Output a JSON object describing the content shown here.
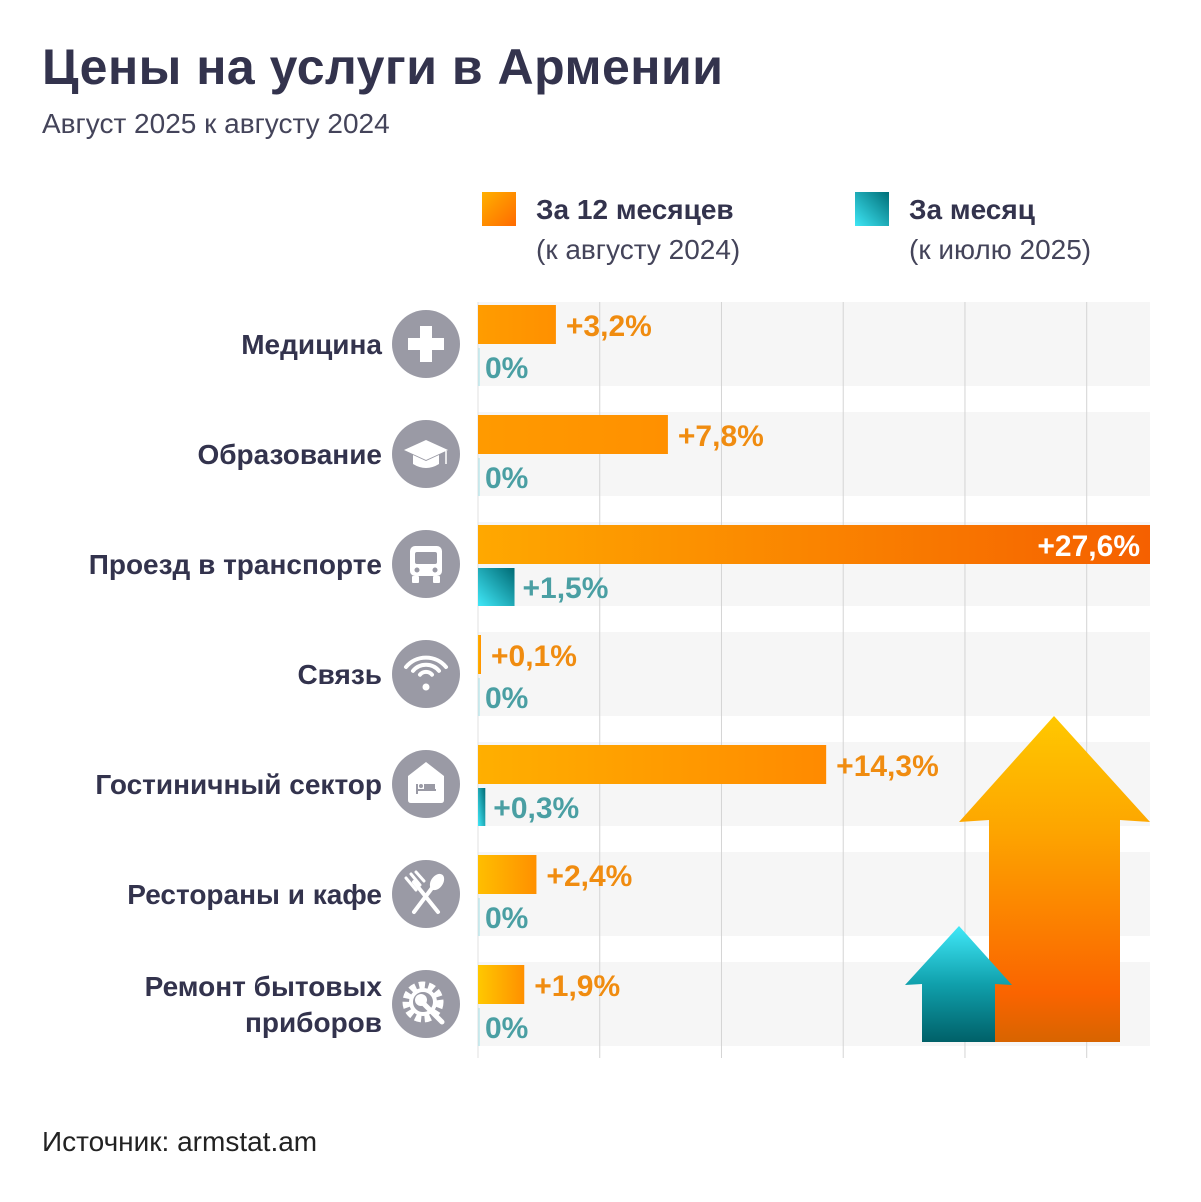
{
  "header": {
    "title": "Цены на услуги в Армении",
    "subtitle": "Август 2025 к августу 2024"
  },
  "legend": [
    {
      "line1": "За 12 месяцев",
      "line2": "(к августу 2024)",
      "color": "#ff8c00"
    },
    {
      "line1": "За месяц",
      "line2": "(к июлю 2025)",
      "color": "#0f8f9a"
    }
  ],
  "source": "Источник: armstat.am",
  "colors": {
    "annual": "#ff9500",
    "annual_label": "#f08c10",
    "monthly": "#0e8a94",
    "monthly_label": "#4a9fa3",
    "icon_bg": "#9a9aa5",
    "row_bg": "#f6f6f6",
    "grid": "#d4d4d4"
  },
  "chart_data": {
    "type": "bar",
    "orientation": "horizontal",
    "title": "Цены на услуги в Армении",
    "subtitle": "Август 2025 к августу 2024",
    "xlim": [
      0,
      27.6
    ],
    "grid": true,
    "grid_step": 5,
    "legend_placement": "top",
    "categories": [
      {
        "label": [
          "Медицина"
        ],
        "icon": "medical-cross-icon"
      },
      {
        "label": [
          "Образование"
        ],
        "icon": "graduation-cap-icon"
      },
      {
        "label": [
          "Проезд в транспорте"
        ],
        "icon": "bus-icon"
      },
      {
        "label": [
          "Связь"
        ],
        "icon": "wifi-icon"
      },
      {
        "label": [
          "Гостиничный сектор"
        ],
        "icon": "hotel-bed-icon"
      },
      {
        "label": [
          "Рестораны и кафе"
        ],
        "icon": "fork-spoon-icon"
      },
      {
        "label": [
          "Ремонт бытовых",
          "приборов"
        ],
        "icon": "gear-wrench-icon"
      }
    ],
    "series": [
      {
        "name": "За 12 месяцев",
        "values": [
          3.2,
          7.8,
          27.6,
          0.1,
          14.3,
          2.4,
          1.9
        ],
        "labels": [
          "+3,2%",
          "+7,8%",
          "+27,6%",
          "+0,1%",
          "+14,3%",
          "+2,4%",
          "+1,9%"
        ]
      },
      {
        "name": "За месяц",
        "values": [
          0,
          0,
          1.5,
          0,
          0.3,
          0,
          0
        ],
        "labels": [
          "0%",
          "0%",
          "+1,5%",
          "0%",
          "+0,3%",
          "0%",
          "0%"
        ]
      }
    ]
  }
}
